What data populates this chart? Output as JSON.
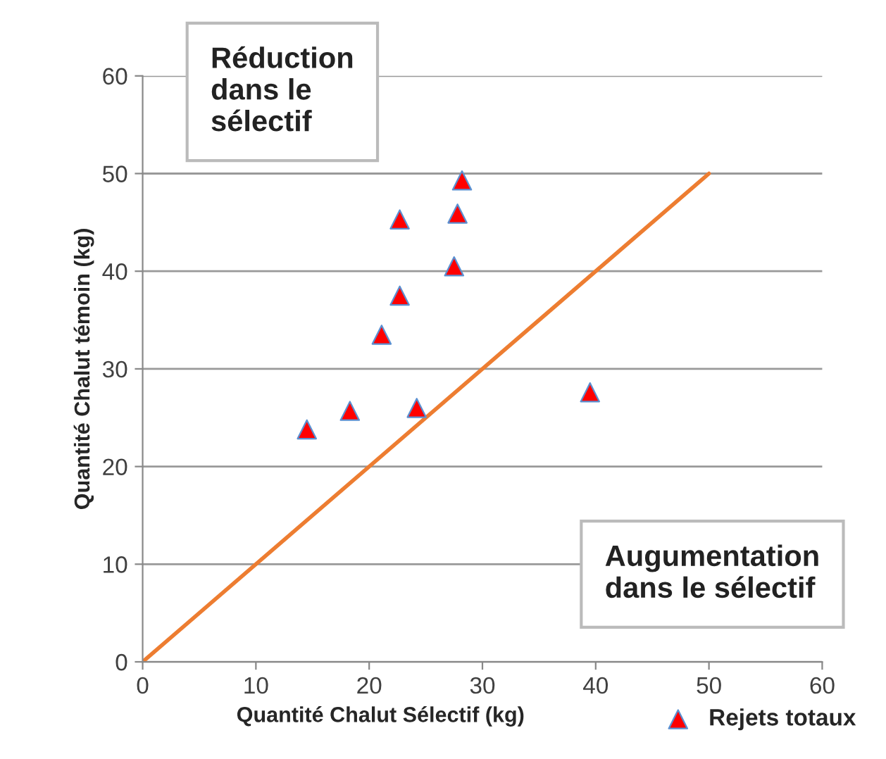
{
  "chart_data": {
    "type": "scatter",
    "xlabel": "Quantité Chalut Sélectif (kg)",
    "ylabel": "Quantité Chalut témoin (kg)",
    "xlim": [
      0,
      60
    ],
    "ylim": [
      0,
      60
    ],
    "xticks": [
      0,
      10,
      20,
      30,
      40,
      50,
      60
    ],
    "yticks": [
      0,
      10,
      20,
      30,
      40,
      50,
      60
    ],
    "grid": "y",
    "legend": "bottom right",
    "marker": "triangle",
    "annotations": [
      "Réduction\ndans le\nsélectif",
      "Augumentation\ndans le sélectif"
    ],
    "series": [
      {
        "name": "Rejets totaux",
        "color": "#ff0000",
        "x": [
          14.5,
          18.3,
          24.2,
          39.5,
          21.1,
          22.7,
          27.5,
          22.7,
          27.8,
          28.2
        ],
        "values": [
          23.8,
          25.7,
          26.0,
          27.6,
          33.5,
          37.5,
          40.5,
          45.3,
          45.9,
          49.3
        ]
      },
      {
        "type": "line",
        "color": "#ed7d31",
        "x": [
          0,
          50
        ],
        "values": [
          0,
          50
        ],
        "marker": "none",
        "line_style": "solid"
      }
    ]
  }
}
